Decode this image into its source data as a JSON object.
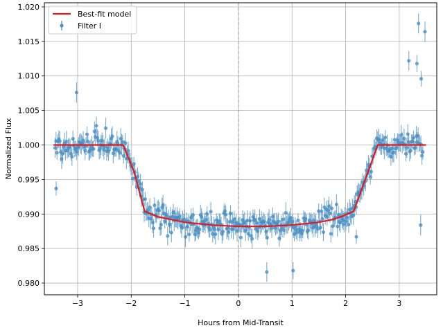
{
  "chart_data": {
    "type": "scatter",
    "xlabel": "Hours from Mid-Transit",
    "ylabel": "Normalized Flux",
    "xlim": [
      -3.62,
      3.7
    ],
    "ylim": [
      0.9783,
      1.0206
    ],
    "x_ticks": [
      -3,
      -2,
      -1,
      0,
      1,
      2,
      3
    ],
    "x_tick_labels": [
      "−3",
      "−2",
      "−1",
      "0",
      "1",
      "2",
      "3"
    ],
    "y_ticks": [
      0.98,
      0.985,
      0.99,
      0.995,
      1.0,
      1.005,
      1.01,
      1.015,
      1.02
    ],
    "y_tick_labels": [
      "0.980",
      "0.985",
      "0.990",
      "0.995",
      "1.000",
      "1.005",
      "1.010",
      "1.015",
      "1.020"
    ],
    "grid": true,
    "vertical_reference_line": {
      "x": 0,
      "style": "dashed"
    },
    "legend": {
      "placement": "top-left",
      "entries": [
        {
          "label": "Best-fit model",
          "kind": "line",
          "color": "#e31a1c"
        },
        {
          "label": "Filter I",
          "kind": "errorbar",
          "color": "#4a8fc2"
        }
      ]
    },
    "series": [
      {
        "name": "Best-fit model",
        "kind": "line",
        "color": "#e31a1c",
        "x": [
          -3.45,
          -2.15,
          -1.95,
          -1.75,
          -1.5,
          -1.0,
          -0.5,
          0.0,
          0.5,
          1.0,
          1.5,
          1.75,
          1.95,
          2.15,
          2.6,
          3.5
        ],
        "y": [
          1.0,
          1.0,
          0.9962,
          0.9904,
          0.9896,
          0.9888,
          0.9884,
          0.9882,
          0.9882,
          0.9884,
          0.9888,
          0.9892,
          0.9897,
          0.9904,
          1.0,
          1.0
        ]
      },
      {
        "name": "Filter I",
        "kind": "errorbar_scatter",
        "color": "#4a8fc2",
        "x_start": -3.42,
        "x_step": 0.0175,
        "n_points": 393,
        "noise_scale": 0.0018,
        "error_bar": 0.0012,
        "outliers": [
          {
            "x": 3.36,
            "y": 1.0176
          },
          {
            "x": 3.48,
            "y": 1.0164
          },
          {
            "x": 3.18,
            "y": 1.0122
          },
          {
            "x": 3.33,
            "y": 1.0118
          },
          {
            "x": 3.41,
            "y": 1.0096
          },
          {
            "x": -3.02,
            "y": 1.0076
          },
          {
            "x": 3.4,
            "y": 0.9884
          },
          {
            "x": 0.53,
            "y": 0.9816
          },
          {
            "x": 1.02,
            "y": 0.9818
          },
          {
            "x": 2.2,
            "y": 0.9867
          },
          {
            "x": -3.4,
            "y": 0.9937
          }
        ]
      }
    ]
  }
}
